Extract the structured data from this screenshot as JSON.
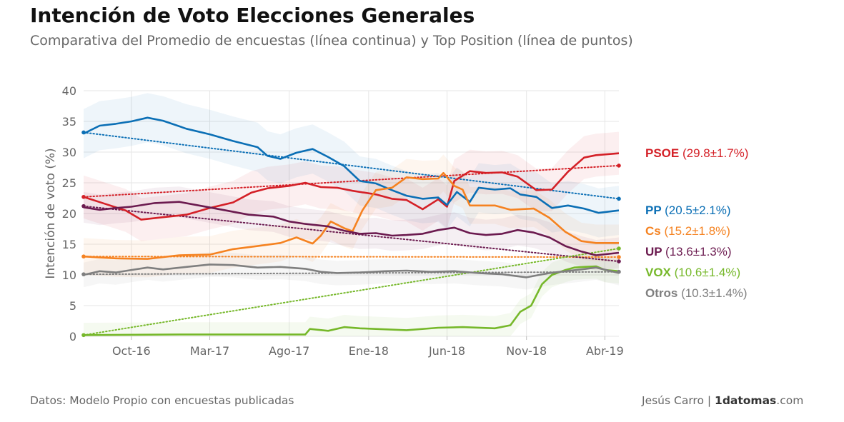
{
  "title": "Intención de Voto Elecciones Generales",
  "subtitle": "Comparativa del Promedio de encuestas (línea continua) y Top Position (línea de puntos)",
  "footer": {
    "source": "Datos: Modelo Propio con encuestas publicadas",
    "author": "Jesús Carro | ",
    "brand_bold": "1datomas",
    "brand_rest": ".com"
  },
  "chart_data": {
    "type": "line",
    "ylabel": "Intención de voto (%)",
    "ylim": [
      0,
      40
    ],
    "yticks": [
      0,
      5,
      10,
      15,
      20,
      25,
      30,
      35,
      40
    ],
    "x_start": "2016-07-01",
    "x_end": "2019-04-28",
    "xticks": [
      {
        "date": "2016-10-01",
        "label": "Oct-16"
      },
      {
        "date": "2017-03-01",
        "label": "Mar-17"
      },
      {
        "date": "2017-08-01",
        "label": "Ago-17"
      },
      {
        "date": "2018-01-01",
        "label": "Ene-18"
      },
      {
        "date": "2018-06-01",
        "label": "Jun-18"
      },
      {
        "date": "2018-11-01",
        "label": "Nov-18"
      },
      {
        "date": "2019-04-01",
        "label": "Abr-19"
      }
    ],
    "grid": true,
    "series": [
      {
        "name": "PSOE",
        "value_label": "(29.8±1.7%)",
        "color": "#d42027",
        "band": 3.5,
        "points": [
          [
            "2016-07-01",
            22.7
          ],
          [
            "2016-08-10",
            21.6
          ],
          [
            "2016-09-20",
            20.5
          ],
          [
            "2016-10-20",
            19.0
          ],
          [
            "2016-12-01",
            19.4
          ],
          [
            "2017-01-15",
            19.8
          ],
          [
            "2017-03-01",
            20.9
          ],
          [
            "2017-04-15",
            21.8
          ],
          [
            "2017-05-20",
            23.4
          ],
          [
            "2017-06-20",
            24.1
          ],
          [
            "2017-08-01",
            24.5
          ],
          [
            "2017-09-01",
            25.0
          ],
          [
            "2017-10-01",
            24.3
          ],
          [
            "2017-11-01",
            24.2
          ],
          [
            "2017-12-01",
            23.7
          ],
          [
            "2018-01-15",
            23.1
          ],
          [
            "2018-02-15",
            22.4
          ],
          [
            "2018-03-15",
            22.2
          ],
          [
            "2018-04-15",
            20.7
          ],
          [
            "2018-05-15",
            22.3
          ],
          [
            "2018-06-01",
            21.1
          ],
          [
            "2018-06-15",
            25.3
          ],
          [
            "2018-07-15",
            26.9
          ],
          [
            "2018-08-15",
            26.6
          ],
          [
            "2018-09-15",
            26.7
          ],
          [
            "2018-10-15",
            26.0
          ],
          [
            "2018-11-20",
            23.8
          ],
          [
            "2018-12-20",
            23.9
          ],
          [
            "2019-01-20",
            26.8
          ],
          [
            "2019-02-20",
            29.1
          ],
          [
            "2019-03-15",
            29.5
          ],
          [
            "2019-04-28",
            29.8
          ]
        ],
        "trend": [
          [
            "2016-07-01",
            22.7
          ],
          [
            "2019-04-28",
            27.8
          ]
        ]
      },
      {
        "name": "PP",
        "value_label": "(20.5±2.1%)",
        "color": "#0b6fb5",
        "band": 4.0,
        "points": [
          [
            "2016-07-01",
            33.0
          ],
          [
            "2016-08-01",
            34.3
          ],
          [
            "2016-09-01",
            34.6
          ],
          [
            "2016-10-01",
            35.0
          ],
          [
            "2016-11-01",
            35.6
          ],
          [
            "2016-12-01",
            35.1
          ],
          [
            "2017-01-15",
            33.8
          ],
          [
            "2017-03-01",
            32.9
          ],
          [
            "2017-04-15",
            31.8
          ],
          [
            "2017-06-01",
            30.8
          ],
          [
            "2017-06-20",
            29.4
          ],
          [
            "2017-07-15",
            28.9
          ],
          [
            "2017-08-15",
            29.9
          ],
          [
            "2017-09-15",
            30.5
          ],
          [
            "2017-10-15",
            29.2
          ],
          [
            "2017-11-15",
            27.7
          ],
          [
            "2017-12-15",
            25.3
          ],
          [
            "2018-01-15",
            24.9
          ],
          [
            "2018-02-15",
            23.8
          ],
          [
            "2018-03-15",
            22.9
          ],
          [
            "2018-04-15",
            22.4
          ],
          [
            "2018-05-15",
            22.6
          ],
          [
            "2018-06-01",
            21.4
          ],
          [
            "2018-06-20",
            23.5
          ],
          [
            "2018-07-15",
            21.9
          ],
          [
            "2018-08-01",
            24.2
          ],
          [
            "2018-09-01",
            23.9
          ],
          [
            "2018-10-01",
            24.1
          ],
          [
            "2018-10-20",
            23.1
          ],
          [
            "2018-11-20",
            22.7
          ],
          [
            "2018-12-20",
            20.9
          ],
          [
            "2019-01-20",
            21.3
          ],
          [
            "2019-02-20",
            20.8
          ],
          [
            "2019-03-20",
            20.1
          ],
          [
            "2019-04-28",
            20.5
          ]
        ],
        "trend": [
          [
            "2016-07-01",
            33.2
          ],
          [
            "2019-04-28",
            22.4
          ]
        ]
      },
      {
        "name": "Cs",
        "value_label": "(15.2±1.8%)",
        "color": "#f58220",
        "band": 3.0,
        "points": [
          [
            "2016-07-01",
            13.0
          ],
          [
            "2016-09-01",
            12.7
          ],
          [
            "2016-11-01",
            12.6
          ],
          [
            "2017-01-01",
            13.2
          ],
          [
            "2017-03-01",
            13.3
          ],
          [
            "2017-04-15",
            14.2
          ],
          [
            "2017-06-01",
            14.7
          ],
          [
            "2017-07-15",
            15.2
          ],
          [
            "2017-08-15",
            16.1
          ],
          [
            "2017-09-15",
            15.1
          ],
          [
            "2017-10-01",
            16.4
          ],
          [
            "2017-10-20",
            18.7
          ],
          [
            "2017-11-15",
            17.6
          ],
          [
            "2017-12-01",
            17.1
          ],
          [
            "2017-12-20",
            20.5
          ],
          [
            "2018-01-15",
            23.8
          ],
          [
            "2018-02-15",
            24.2
          ],
          [
            "2018-03-15",
            25.9
          ],
          [
            "2018-04-15",
            25.6
          ],
          [
            "2018-05-15",
            25.7
          ],
          [
            "2018-05-25",
            26.6
          ],
          [
            "2018-06-15",
            24.5
          ],
          [
            "2018-07-01",
            23.9
          ],
          [
            "2018-07-15",
            21.3
          ],
          [
            "2018-09-01",
            21.3
          ],
          [
            "2018-10-01",
            20.6
          ],
          [
            "2018-11-15",
            20.8
          ],
          [
            "2018-12-15",
            19.3
          ],
          [
            "2019-01-15",
            17.0
          ],
          [
            "2019-02-15",
            15.5
          ],
          [
            "2019-03-15",
            15.2
          ],
          [
            "2019-04-28",
            15.2
          ]
        ],
        "trend": [
          [
            "2016-07-01",
            13.0
          ],
          [
            "2019-04-28",
            12.9
          ]
        ]
      },
      {
        "name": "UP",
        "value_label": "(13.6±1.3%)",
        "color": "#6b1a4f",
        "band": 2.5,
        "points": [
          [
            "2016-07-01",
            21.0
          ],
          [
            "2016-08-01",
            20.6
          ],
          [
            "2016-09-01",
            20.9
          ],
          [
            "2016-10-01",
            21.1
          ],
          [
            "2016-11-15",
            21.7
          ],
          [
            "2017-01-01",
            21.9
          ],
          [
            "2017-02-15",
            21.2
          ],
          [
            "2017-04-01",
            20.5
          ],
          [
            "2017-05-15",
            19.8
          ],
          [
            "2017-07-01",
            19.5
          ],
          [
            "2017-08-01",
            18.7
          ],
          [
            "2017-09-01",
            18.3
          ],
          [
            "2017-10-15",
            17.9
          ],
          [
            "2017-11-15",
            17.2
          ],
          [
            "2017-12-15",
            16.7
          ],
          [
            "2018-01-15",
            16.8
          ],
          [
            "2018-02-15",
            16.4
          ],
          [
            "2018-03-15",
            16.5
          ],
          [
            "2018-04-15",
            16.7
          ],
          [
            "2018-05-15",
            17.3
          ],
          [
            "2018-06-15",
            17.7
          ],
          [
            "2018-07-15",
            16.8
          ],
          [
            "2018-08-15",
            16.5
          ],
          [
            "2018-09-15",
            16.7
          ],
          [
            "2018-10-15",
            17.3
          ],
          [
            "2018-11-15",
            16.9
          ],
          [
            "2018-12-15",
            16.1
          ],
          [
            "2019-01-15",
            14.7
          ],
          [
            "2019-02-15",
            13.8
          ],
          [
            "2019-03-15",
            13.2
          ],
          [
            "2019-04-28",
            13.6
          ]
        ],
        "trend": [
          [
            "2016-07-01",
            21.2
          ],
          [
            "2019-04-28",
            12.2
          ]
        ]
      },
      {
        "name": "VOX",
        "value_label": "(10.6±1.4%)",
        "color": "#76b82a",
        "band": 2.0,
        "points": [
          [
            "2016-07-01",
            0.2
          ],
          [
            "2017-01-01",
            0.3
          ],
          [
            "2017-07-01",
            0.3
          ],
          [
            "2017-09-01",
            0.3
          ],
          [
            "2017-09-10",
            1.2
          ],
          [
            "2017-10-15",
            0.9
          ],
          [
            "2017-11-15",
            1.5
          ],
          [
            "2017-12-15",
            1.3
          ],
          [
            "2018-01-15",
            1.2
          ],
          [
            "2018-03-15",
            1.0
          ],
          [
            "2018-05-15",
            1.4
          ],
          [
            "2018-07-01",
            1.5
          ],
          [
            "2018-09-01",
            1.3
          ],
          [
            "2018-10-01",
            1.8
          ],
          [
            "2018-10-20",
            4.0
          ],
          [
            "2018-11-10",
            5.0
          ],
          [
            "2018-12-01",
            8.5
          ],
          [
            "2018-12-20",
            10.0
          ],
          [
            "2019-01-15",
            10.8
          ],
          [
            "2019-02-01",
            11.2
          ],
          [
            "2019-02-20",
            11.3
          ],
          [
            "2019-03-15",
            11.4
          ],
          [
            "2019-04-01",
            10.8
          ],
          [
            "2019-04-28",
            10.6
          ]
        ],
        "trend": [
          [
            "2016-07-01",
            0.2
          ],
          [
            "2019-04-28",
            14.3
          ]
        ]
      },
      {
        "name": "Otros",
        "value_label": "(10.3±1.4%)",
        "color": "#7f7f7f",
        "band": 2.0,
        "points": [
          [
            "2016-07-01",
            10.0
          ],
          [
            "2016-08-01",
            10.6
          ],
          [
            "2016-09-01",
            10.4
          ],
          [
            "2016-10-01",
            10.8
          ],
          [
            "2016-11-01",
            11.2
          ],
          [
            "2016-12-01",
            10.9
          ],
          [
            "2017-01-15",
            11.3
          ],
          [
            "2017-03-01",
            11.7
          ],
          [
            "2017-04-15",
            11.6
          ],
          [
            "2017-06-01",
            11.2
          ],
          [
            "2017-07-15",
            11.3
          ],
          [
            "2017-09-01",
            11.0
          ],
          [
            "2017-10-01",
            10.5
          ],
          [
            "2017-11-01",
            10.3
          ],
          [
            "2017-12-15",
            10.4
          ],
          [
            "2018-02-01",
            10.6
          ],
          [
            "2018-03-15",
            10.7
          ],
          [
            "2018-05-01",
            10.5
          ],
          [
            "2018-06-15",
            10.6
          ],
          [
            "2018-08-01",
            10.3
          ],
          [
            "2018-09-15",
            10.1
          ],
          [
            "2018-11-01",
            9.6
          ],
          [
            "2018-12-15",
            10.3
          ],
          [
            "2019-01-15",
            10.6
          ],
          [
            "2019-02-15",
            10.9
          ],
          [
            "2019-03-15",
            11.2
          ],
          [
            "2019-04-28",
            10.3
          ]
        ],
        "trend": [
          [
            "2016-07-01",
            10.1
          ],
          [
            "2019-04-28",
            10.5
          ]
        ]
      }
    ]
  }
}
